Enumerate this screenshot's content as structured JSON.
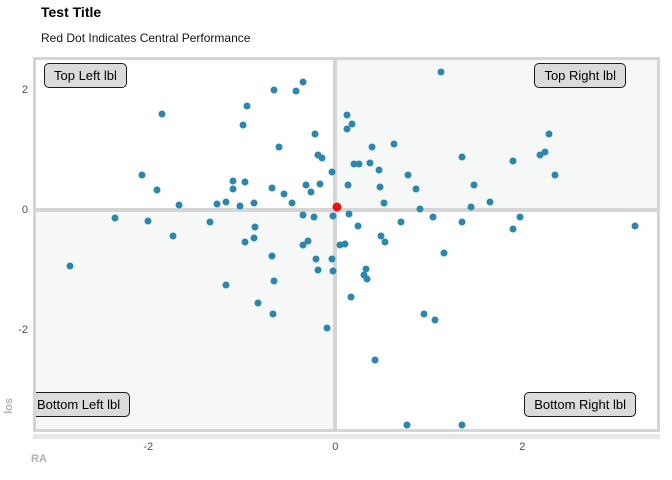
{
  "header": {
    "title": "Test Title",
    "subtitle": "Red Dot Indicates Central Performance"
  },
  "quadrant_labels": {
    "top_left": "Top Left lbl",
    "top_right": "Top Right lbl",
    "bottom_left": "Bottom Left lbl",
    "bottom_right": "Bottom Right lbl"
  },
  "axes": {
    "x_title": "RA",
    "y_title": "los",
    "x_ticks": [
      {
        "value": -2,
        "label": "-2"
      },
      {
        "value": 0,
        "label": "0"
      },
      {
        "value": 2,
        "label": "2"
      }
    ],
    "y_ticks": [
      {
        "value": 2,
        "label": "2"
      },
      {
        "value": 0,
        "label": "0"
      },
      {
        "value": -2,
        "label": "-2"
      }
    ]
  },
  "colors": {
    "point": "#2b87ad",
    "center_point": "#e8130b",
    "grid": "#d5d5d5",
    "quadrant_shade": "#f6f8f8",
    "tick_text": "#4d4d4d",
    "axis_title_text": "#b0b0b0",
    "label_box_bg": "#dbdbdb"
  },
  "chart_data": {
    "type": "scatter",
    "title": "Test Title",
    "subtitle": "Red Dot Indicates Central Performance",
    "xlabel": "RA",
    "ylabel": "los",
    "xlim": [
      -3.2,
      3.44
    ],
    "ylim": [
      -3.65,
      2.5
    ],
    "reference_lines": {
      "x": 0,
      "y": 0
    },
    "grid": false,
    "legend": "none",
    "series": [
      {
        "name": "points",
        "color": "#2b87ad",
        "points": [
          [
            -1.85,
            1.6
          ],
          [
            -0.65,
            2.0
          ],
          [
            -0.42,
            1.99
          ],
          [
            -0.35,
            2.14
          ],
          [
            -0.94,
            1.73
          ],
          [
            -0.99,
            1.41
          ],
          [
            -0.22,
            1.27
          ],
          [
            -0.6,
            1.05
          ],
          [
            -0.18,
            0.92
          ],
          [
            -0.14,
            0.86
          ],
          [
            -0.03,
            0.64
          ],
          [
            -2.07,
            0.58
          ],
          [
            -1.91,
            0.33
          ],
          [
            -1.09,
            0.49
          ],
          [
            -1.09,
            0.35
          ],
          [
            -0.96,
            0.46
          ],
          [
            -0.68,
            0.36
          ],
          [
            -0.55,
            0.26
          ],
          [
            -0.31,
            0.41
          ],
          [
            -0.26,
            0.3
          ],
          [
            -0.16,
            0.44
          ],
          [
            -1.67,
            0.08
          ],
          [
            -1.26,
            0.1
          ],
          [
            -1.17,
            0.13
          ],
          [
            -1.02,
            0.07
          ],
          [
            -0.87,
            0.12
          ],
          [
            -0.46,
            0.12
          ],
          [
            1.13,
            2.3
          ],
          [
            0.13,
            1.58
          ],
          [
            0.18,
            1.43
          ],
          [
            0.13,
            1.35
          ],
          [
            2.29,
            1.27
          ],
          [
            0.39,
            1.05
          ],
          [
            0.63,
            1.1
          ],
          [
            1.35,
            0.89
          ],
          [
            1.9,
            0.81
          ],
          [
            2.19,
            0.92
          ],
          [
            2.24,
            0.97
          ],
          [
            0.2,
            0.77
          ],
          [
            0.25,
            0.77
          ],
          [
            0.37,
            0.79
          ],
          [
            0.47,
            0.67
          ],
          [
            0.78,
            0.59
          ],
          [
            2.35,
            0.58
          ],
          [
            0.14,
            0.41
          ],
          [
            0.48,
            0.38
          ],
          [
            0.86,
            0.35
          ],
          [
            1.48,
            0.41
          ],
          [
            0.52,
            0.12
          ],
          [
            0.91,
            0.02
          ],
          [
            1.45,
            0.05
          ],
          [
            1.65,
            0.13
          ],
          [
            -2.36,
            -0.13
          ],
          [
            -2.0,
            -0.18
          ],
          [
            -1.74,
            -0.43
          ],
          [
            -1.34,
            -0.2
          ],
          [
            -2.84,
            -0.94
          ],
          [
            -0.96,
            -0.53
          ],
          [
            -0.87,
            -0.46
          ],
          [
            -0.86,
            -0.28
          ],
          [
            -0.68,
            -0.76
          ],
          [
            -0.65,
            -1.18
          ],
          [
            -1.17,
            -1.25
          ],
          [
            -0.83,
            -1.55
          ],
          [
            -0.67,
            -1.74
          ],
          [
            -0.34,
            -0.08
          ],
          [
            -0.23,
            -0.12
          ],
          [
            -0.35,
            -0.58
          ],
          [
            -0.29,
            -0.51
          ],
          [
            -0.21,
            -0.81
          ],
          [
            -0.04,
            -0.82
          ],
          [
            -0.18,
            -1.0
          ],
          [
            -0.02,
            -1.02
          ],
          [
            -0.09,
            -1.96
          ],
          [
            -0.02,
            -0.1
          ],
          [
            0.15,
            -0.07
          ],
          [
            0.24,
            -0.26
          ],
          [
            0.7,
            -0.2
          ],
          [
            1.04,
            -0.12
          ],
          [
            1.35,
            -0.2
          ],
          [
            1.97,
            -0.12
          ],
          [
            1.9,
            -0.31
          ],
          [
            3.21,
            -0.26
          ],
          [
            0.49,
            -0.44
          ],
          [
            0.53,
            -0.53
          ],
          [
            0.05,
            -0.58
          ],
          [
            0.1,
            -0.56
          ],
          [
            0.33,
            -0.99
          ],
          [
            0.31,
            -1.09
          ],
          [
            0.34,
            -1.15
          ],
          [
            0.17,
            -1.45
          ],
          [
            1.16,
            -0.71
          ],
          [
            0.95,
            -1.74
          ],
          [
            1.07,
            -1.84
          ],
          [
            0.42,
            -2.5
          ],
          [
            0.77,
            -3.59
          ],
          [
            1.35,
            -3.59
          ]
        ]
      },
      {
        "name": "central",
        "color": "#e8130b",
        "points": [
          [
            0.02,
            0.05
          ]
        ]
      }
    ]
  }
}
